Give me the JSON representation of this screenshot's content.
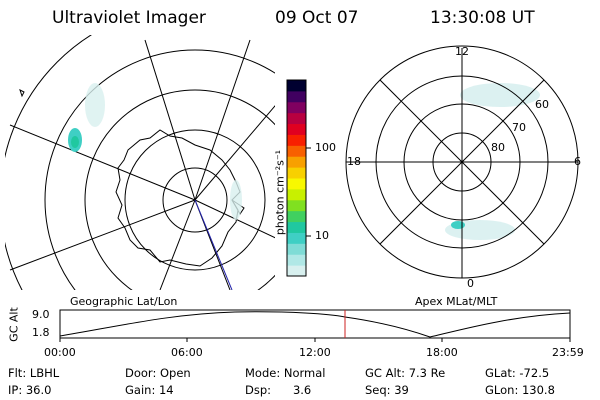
{
  "header": {
    "title": "Ultraviolet Imager",
    "date": "09 Oct 07",
    "time": "13:30:08 UT"
  },
  "left_panel": {
    "caption": "Geographic Lat/Lon"
  },
  "right_panel": {
    "caption": "Apex MLat/MLT",
    "mlt_labels": [
      "12",
      "18",
      "6",
      "0"
    ],
    "mlat_labels": [
      "60",
      "70",
      "80"
    ]
  },
  "colorbar": {
    "unit_label": "photon cm⁻²s⁻¹",
    "ticks": [
      "100",
      "10"
    ],
    "colors": [
      "#d8f0ef",
      "#b0e8e6",
      "#7fdcd6",
      "#3fcfc4",
      "#20c8a0",
      "#40d060",
      "#80e020",
      "#c8f000",
      "#f8f800",
      "#f8d000",
      "#f8a000",
      "#f86000",
      "#f82000",
      "#e00020",
      "#b80040",
      "#800060",
      "#400060",
      "#000030"
    ]
  },
  "altitude_plot": {
    "ylabel": "GC Alt",
    "y_ticks": [
      "9.0",
      "1.8"
    ],
    "x_ticks": [
      "00:00",
      "06:00",
      "12:00",
      "18:00",
      "23:59"
    ],
    "marker_color": "#cc2222"
  },
  "info": {
    "flt": "Flt: LBHL",
    "door": "Door: Open",
    "mode": "Mode: Normal",
    "gc_alt": "GC Alt: 7.3 Re",
    "glat": "GLat: -72.5",
    "ip": "IP: 36.0",
    "gain": "Gain: 14",
    "dsp": "Dsp:      3.6",
    "seq": "Seq: 39",
    "glon": "GLon: 130.8"
  }
}
